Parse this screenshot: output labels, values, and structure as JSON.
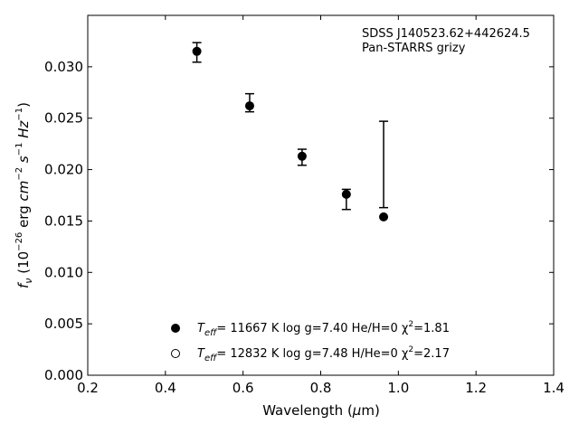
{
  "chart_data": {
    "type": "scatter",
    "xlim": [
      0.2,
      1.4
    ],
    "ylim": [
      0.0,
      0.035
    ],
    "x_ticks": [
      0.2,
      0.4,
      0.6,
      0.8,
      1.0,
      1.2,
      1.4
    ],
    "y_ticks": [
      0.0,
      0.005,
      0.01,
      0.015,
      0.02,
      0.025,
      0.03
    ],
    "x_tick_labels": [
      "0.2",
      "0.4",
      "0.6",
      "0.8",
      "1.0",
      "1.2",
      "1.4"
    ],
    "y_tick_labels": [
      "0.000",
      "0.005",
      "0.010",
      "0.015",
      "0.020",
      "0.025",
      "0.030"
    ],
    "xlabel": "Wavelength (μm)",
    "ylabel": "f_ν (10^-26 erg cm^-2 s^-1 Hz^-1)",
    "annotation_lines": [
      "SDSS J140523.62+442624.5",
      "Pan-STARRS grizy"
    ],
    "observed": {
      "x": [
        0.481,
        0.617,
        0.752,
        0.866,
        0.962
      ],
      "y": [
        0.0314,
        0.0265,
        0.0212,
        0.0171,
        0.0205
      ],
      "yerr": [
        0.00095,
        0.00088,
        0.00078,
        0.00098,
        0.0042
      ]
    },
    "series": [
      {
        "name": "T_eff= 11667 K  log g=7.40  He/H=0  χ²=1.81",
        "marker": "filled-circle",
        "x": [
          0.481,
          0.617,
          0.752,
          0.866,
          0.962
        ],
        "y": [
          0.0315,
          0.0262,
          0.0213,
          0.0176,
          0.0154
        ]
      },
      {
        "name": "T_eff= 12832 K  log g=7.48  H/He=0  χ²=2.17",
        "marker": "open-circle",
        "x": [],
        "y": []
      }
    ],
    "legend_position": "lower-center",
    "grid": false
  },
  "legend": {
    "filled_text": "= 11667 K  log g=7.40  He/H=0  χ",
    "filled_chi": "=1.81",
    "open_text": "= 12832 K  log g=7.48  H/He=0  χ",
    "open_chi": "=2.17",
    "teff_main": "T",
    "teff_sub": "eff",
    "chi_sup": "2"
  },
  "axis_text": {
    "xlabel_main": "Wavelength (",
    "xlabel_mu": "μ",
    "xlabel_end": "m)",
    "ylabel_f": "f",
    "ylabel_nu": "ν",
    "ylabel_open": " (10",
    "ylabel_exp26": "−26",
    "ylabel_erg": " erg ",
    "ylabel_cm": "cm",
    "ylabel_exp2": "−2",
    "ylabel_s": " s",
    "ylabel_exp1": "−1",
    "ylabel_hz": " Hz",
    "ylabel_exp1b": "−1",
    "ylabel_close": ")"
  }
}
